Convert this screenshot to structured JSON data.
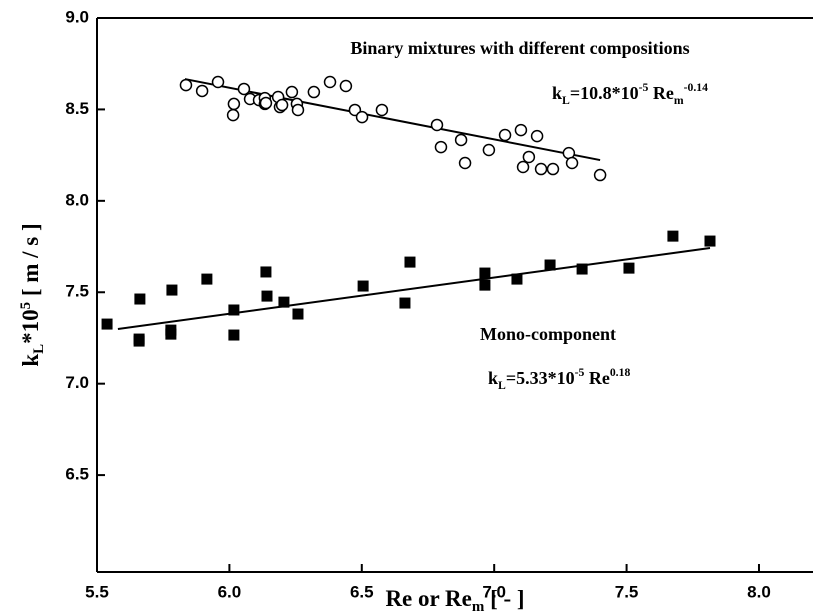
{
  "chart_data": {
    "type": "scatter",
    "xlabel": [
      {
        "text": "Re or Re",
        "shift": "base"
      },
      {
        "text": "m",
        "shift": "sub"
      },
      {
        "text": " [ - ]",
        "shift": "base"
      }
    ],
    "ylabel": [
      {
        "text": "k",
        "shift": "base"
      },
      {
        "text": "L",
        "shift": "sub"
      },
      {
        "text": "*10",
        "shift": "base"
      },
      {
        "text": "5",
        "shift": "sup"
      },
      {
        "text": " [ m / s ]",
        "shift": "base"
      }
    ],
    "xlim": [
      5.5,
      8.204
    ],
    "ylim": [
      5.97,
      9.0
    ],
    "xticks": [
      5.5,
      {
        "value": 6,
        "label": "6.0"
      },
      6.5,
      {
        "value": 7,
        "label": "7.0"
      },
      7.5,
      {
        "value": 8,
        "label": "8.0"
      }
    ],
    "yticks": [
      6.5,
      {
        "value": 7,
        "label": "7.0"
      },
      7.5,
      {
        "value": 8,
        "label": "8.0"
      },
      8.5,
      {
        "value": 9,
        "label": "9.0"
      }
    ],
    "color": "#000000",
    "series": [
      {
        "marker": "circle",
        "x": [
          5.836,
          5.897,
          5.957,
          6.014,
          6.017,
          6.055,
          6.078,
          6.112,
          6.134,
          6.134,
          6.138,
          6.184,
          6.191,
          6.199,
          6.236,
          6.255,
          6.259,
          6.319,
          6.38,
          6.44,
          6.474,
          6.501,
          6.576,
          6.784,
          6.799,
          6.875,
          6.89,
          6.98,
          7.041,
          7.101,
          7.109,
          7.131,
          7.162,
          7.177,
          7.222,
          7.282,
          7.294,
          7.4
        ],
        "values": [
          8.633,
          8.601,
          8.65,
          8.469,
          8.53,
          8.612,
          8.557,
          8.551,
          8.562,
          8.53,
          8.535,
          8.568,
          8.513,
          8.524,
          8.595,
          8.53,
          8.497,
          8.595,
          8.65,
          8.628,
          8.497,
          8.458,
          8.497,
          8.415,
          8.294,
          8.333,
          8.207,
          8.278,
          8.36,
          8.387,
          8.185,
          8.24,
          8.354,
          8.174,
          8.174,
          8.261,
          8.207,
          8.141
        ]
      },
      {
        "marker": "square",
        "x": [
          5.538,
          5.659,
          5.659,
          5.662,
          5.779,
          5.779,
          5.783,
          5.915,
          6.017,
          6.017,
          6.138,
          6.142,
          6.206,
          6.259,
          6.505,
          6.663,
          6.682,
          6.965,
          6.965,
          7.086,
          7.211,
          7.332,
          7.509,
          7.675,
          7.815
        ],
        "values": [
          7.326,
          7.244,
          7.233,
          7.463,
          7.293,
          7.271,
          7.512,
          7.572,
          7.266,
          7.403,
          7.611,
          7.479,
          7.446,
          7.381,
          7.534,
          7.441,
          7.665,
          7.605,
          7.539,
          7.572,
          7.649,
          7.627,
          7.632,
          7.807,
          7.78
        ]
      }
    ],
    "fits": [
      {
        "x": [
          5.832,
          7.4
        ],
        "values": [
          8.666,
          8.223
        ]
      },
      {
        "x": [
          5.579,
          7.815
        ],
        "values": [
          7.299,
          7.742
        ]
      }
    ],
    "annotations": [
      [
        {
          "text": "Binary mixtures with different compositions",
          "shift": "base"
        }
      ],
      [
        {
          "text": "k",
          "shift": "base"
        },
        {
          "text": "L",
          "shift": "sub"
        },
        {
          "text": "=10.8*10",
          "shift": "base"
        },
        {
          "text": "-5",
          "shift": "sup"
        },
        {
          "text": " Re",
          "shift": "base"
        },
        {
          "text": "m",
          "shift": "sub"
        },
        {
          "text": "-0.14",
          "shift": "sup"
        }
      ],
      [
        {
          "text": "Mono-component",
          "shift": "base"
        }
      ],
      [
        {
          "text": "k",
          "shift": "base"
        },
        {
          "text": "L",
          "shift": "sub"
        },
        {
          "text": "=5.33*10",
          "shift": "base"
        },
        {
          "text": "-5",
          "shift": "sup"
        },
        {
          "text": " Re",
          "shift": "base"
        },
        {
          "text": "0.18",
          "shift": "sup"
        }
      ]
    ]
  }
}
